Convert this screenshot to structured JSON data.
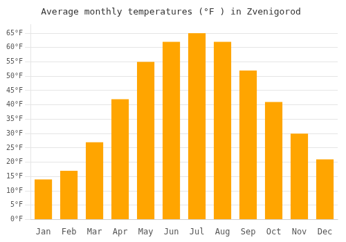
{
  "chart_data": {
    "type": "bar",
    "title": "Average monthly temperatures (°F ) in Zvenigorod",
    "categories": [
      "Jan",
      "Feb",
      "Mar",
      "Apr",
      "May",
      "Jun",
      "Jul",
      "Aug",
      "Sep",
      "Oct",
      "Nov",
      "Dec"
    ],
    "values": [
      14,
      17,
      27,
      42,
      55,
      62,
      65,
      62,
      52,
      41,
      30,
      21
    ],
    "color": "#FFA500",
    "ylim": [
      0,
      68
    ],
    "yticks": [
      {
        "value": 0,
        "label": "0°F"
      },
      {
        "value": 5,
        "label": "5°F"
      },
      {
        "value": 10,
        "label": "10°F"
      },
      {
        "value": 15,
        "label": "15°F"
      },
      {
        "value": 20,
        "label": "20°F"
      },
      {
        "value": 25,
        "label": "25°F"
      },
      {
        "value": 30,
        "label": "30°F"
      },
      {
        "value": 35,
        "label": "35°F"
      },
      {
        "value": 40,
        "label": "40°F"
      },
      {
        "value": 45,
        "label": "45°F"
      },
      {
        "value": 50,
        "label": "50°F"
      },
      {
        "value": 55,
        "label": "55°F"
      },
      {
        "value": 60,
        "label": "60°F"
      },
      {
        "value": 65,
        "label": "65°F"
      }
    ],
    "grid": true
  }
}
